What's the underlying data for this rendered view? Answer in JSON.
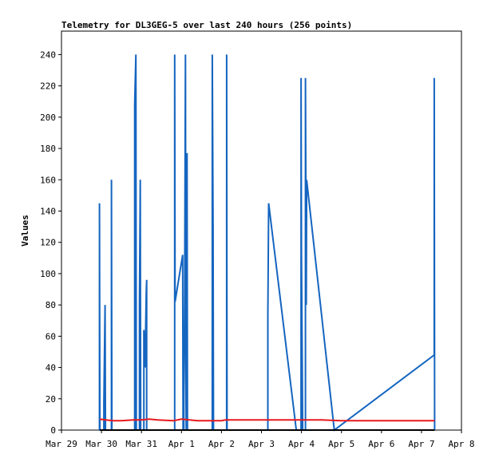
{
  "chart_data": {
    "type": "line",
    "title": "Telemetry for DL3GEG-5 over last 240 hours (256 points)",
    "xlabel": "",
    "ylabel": "Values",
    "x_unit": "days since Mar 29 00:00",
    "xlim": [
      0,
      10
    ],
    "ylim": [
      0,
      255
    ],
    "x_ticks": [
      {
        "label": "Mar 29",
        "value": 0
      },
      {
        "label": "Mar 30",
        "value": 1
      },
      {
        "label": "Mar 31",
        "value": 2
      },
      {
        "label": "Apr 1",
        "value": 3
      },
      {
        "label": "Apr 2",
        "value": 4
      },
      {
        "label": "Apr 3",
        "value": 5
      },
      {
        "label": "Apr 4",
        "value": 6
      },
      {
        "label": "Apr 5",
        "value": 7
      },
      {
        "label": "Apr 6",
        "value": 8
      },
      {
        "label": "Apr 7",
        "value": 9
      },
      {
        "label": "Apr 8",
        "value": 10
      }
    ],
    "y_ticks": [
      0,
      20,
      40,
      60,
      80,
      100,
      120,
      140,
      160,
      180,
      200,
      220,
      240
    ],
    "grid": false,
    "legend": "none",
    "colors": {
      "series_blue": "#1565c0",
      "series_red": "#e8191e",
      "series_black": "#000000"
    },
    "series": [
      {
        "name": "",
        "color": "#1565c0",
        "points": [
          [
            0.95,
            0
          ],
          [
            0.95,
            145
          ],
          [
            0.96,
            0
          ],
          [
            1.06,
            0
          ],
          [
            1.06,
            17
          ],
          [
            1.09,
            80
          ],
          [
            1.1,
            0
          ],
          [
            1.25,
            0
          ],
          [
            1.25,
            160
          ],
          [
            1.26,
            17
          ],
          [
            1.26,
            0
          ],
          [
            1.83,
            0
          ],
          [
            1.83,
            208
          ],
          [
            1.86,
            240
          ],
          [
            1.87,
            0
          ],
          [
            1.95,
            0
          ],
          [
            1.95,
            80
          ],
          [
            1.97,
            160
          ],
          [
            1.98,
            0
          ],
          [
            2.06,
            0
          ],
          [
            2.06,
            64
          ],
          [
            2.09,
            40
          ],
          [
            2.1,
            57
          ],
          [
            2.12,
            88
          ],
          [
            2.13,
            96
          ],
          [
            2.13,
            0
          ],
          [
            2.83,
            0
          ],
          [
            2.83,
            240
          ],
          [
            2.84,
            82
          ],
          [
            3.03,
            112
          ],
          [
            3.04,
            0
          ],
          [
            3.06,
            0
          ],
          [
            3.06,
            28
          ],
          [
            3.07,
            50
          ],
          [
            3.08,
            87
          ],
          [
            3.1,
            240
          ],
          [
            3.11,
            30
          ],
          [
            3.12,
            0
          ],
          [
            3.14,
            0
          ],
          [
            3.14,
            177
          ],
          [
            3.15,
            0
          ],
          [
            3.77,
            0
          ],
          [
            3.77,
            240
          ],
          [
            3.79,
            128
          ],
          [
            3.8,
            0
          ],
          [
            4.13,
            0
          ],
          [
            4.13,
            240
          ],
          [
            4.14,
            0
          ],
          [
            5.16,
            0
          ],
          [
            5.16,
            73
          ],
          [
            5.18,
            145
          ],
          [
            5.87,
            0
          ],
          [
            5.99,
            0
          ],
          [
            5.99,
            225
          ],
          [
            6.0,
            113
          ],
          [
            6.03,
            0
          ],
          [
            6.1,
            0
          ],
          [
            6.1,
            225
          ],
          [
            6.12,
            80
          ],
          [
            6.13,
            160
          ],
          [
            6.82,
            0
          ],
          [
            9.32,
            48
          ],
          [
            9.32,
            225
          ],
          [
            9.33,
            0
          ]
        ]
      },
      {
        "name": "",
        "color": "#e8191e",
        "points": [
          [
            0.96,
            7
          ],
          [
            1.1,
            6.5
          ],
          [
            1.3,
            6
          ],
          [
            1.5,
            6
          ],
          [
            1.8,
            6.5
          ],
          [
            2.0,
            6.5
          ],
          [
            2.2,
            7
          ],
          [
            2.4,
            6.5
          ],
          [
            2.8,
            6
          ],
          [
            3.0,
            7
          ],
          [
            3.2,
            6.5
          ],
          [
            3.4,
            6
          ],
          [
            3.6,
            6
          ],
          [
            4.0,
            6
          ],
          [
            4.1,
            6.5
          ],
          [
            4.5,
            6.5
          ],
          [
            5.0,
            6.5
          ],
          [
            5.5,
            6.5
          ],
          [
            6.0,
            6.5
          ],
          [
            6.5,
            6.5
          ],
          [
            7.0,
            6
          ],
          [
            7.5,
            6
          ],
          [
            8.0,
            6
          ],
          [
            8.5,
            6
          ],
          [
            9.0,
            6
          ],
          [
            9.33,
            6
          ]
        ]
      },
      {
        "name": "",
        "color": "#000000",
        "points": [
          [
            0.96,
            0
          ],
          [
            9.33,
            0
          ]
        ]
      }
    ]
  }
}
